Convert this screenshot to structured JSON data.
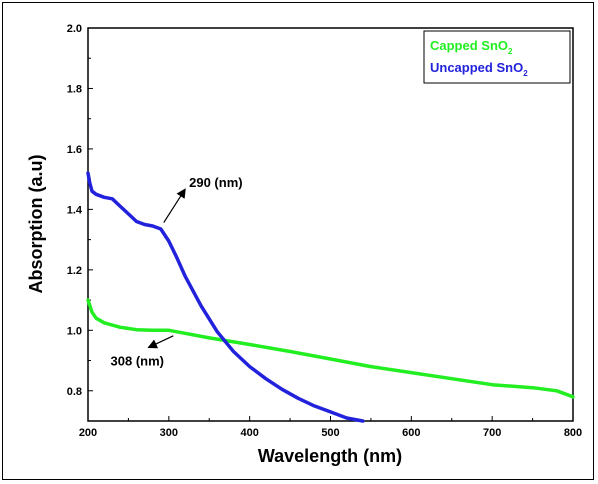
{
  "chart_data": {
    "type": "line",
    "xlabel": "Wavelength (nm)",
    "ylabel": "Absorption (a.u)",
    "xlim": [
      200,
      800
    ],
    "ylim": [
      0.7,
      2.0
    ],
    "x_ticks": [
      200,
      300,
      400,
      500,
      600,
      700,
      800
    ],
    "y_ticks": [
      0.8,
      1.0,
      1.2,
      1.4,
      1.6,
      1.8,
      2.0
    ],
    "x_tick_labels": [
      "200",
      "300",
      "400",
      "500",
      "600",
      "700",
      "800"
    ],
    "y_tick_labels": [
      "0.8",
      "1.0",
      "1.2",
      "1.4",
      "1.6",
      "1.8",
      "2.0"
    ],
    "grid": false,
    "legend_position": "top-right",
    "series": [
      {
        "name": "Capped SnO2",
        "legend_main": "Capped SnO",
        "legend_sub": "2",
        "color": "#22ee22",
        "x": [
          200,
          205,
          210,
          220,
          240,
          260,
          280,
          300,
          320,
          350,
          400,
          450,
          500,
          550,
          600,
          650,
          700,
          750,
          780,
          800
        ],
        "y": [
          1.1,
          1.06,
          1.04,
          1.025,
          1.01,
          1.002,
          1.0,
          1.0,
          0.99,
          0.975,
          0.953,
          0.93,
          0.905,
          0.88,
          0.86,
          0.84,
          0.82,
          0.81,
          0.8,
          0.78
        ]
      },
      {
        "name": "Uncapped SnO2",
        "legend_main": "Uncapped SnO",
        "legend_sub": "2",
        "color": "#2222dd",
        "x": [
          200,
          202,
          205,
          210,
          220,
          230,
          240,
          250,
          260,
          270,
          280,
          290,
          300,
          310,
          320,
          340,
          360,
          380,
          400,
          420,
          440,
          460,
          480,
          500,
          520,
          540
        ],
        "y": [
          1.52,
          1.49,
          1.46,
          1.45,
          1.44,
          1.435,
          1.41,
          1.385,
          1.36,
          1.35,
          1.345,
          1.335,
          1.295,
          1.24,
          1.18,
          1.08,
          0.995,
          0.93,
          0.88,
          0.84,
          0.805,
          0.775,
          0.75,
          0.73,
          0.71,
          0.7
        ]
      }
    ],
    "annotations": [
      {
        "text": "290 (nm)",
        "x": 290,
        "y": 1.34,
        "label_x": 335,
        "label_y": 1.48
      },
      {
        "text": "308 (nm)",
        "x": 308,
        "y": 0.995,
        "label_x": 265,
        "label_y": 0.93
      }
    ]
  }
}
